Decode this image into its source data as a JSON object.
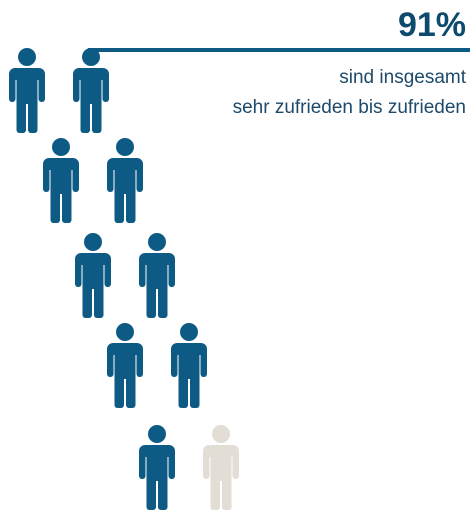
{
  "chart_data": {
    "type": "pictogram",
    "values": [
      91
    ],
    "value_labels": [
      "91%"
    ],
    "color": "#0d5a84",
    "empty_color": "#e2ddd5",
    "annotation": [
      "sind insgesamt",
      "sehr zufrieden bis zufrieden"
    ]
  }
}
